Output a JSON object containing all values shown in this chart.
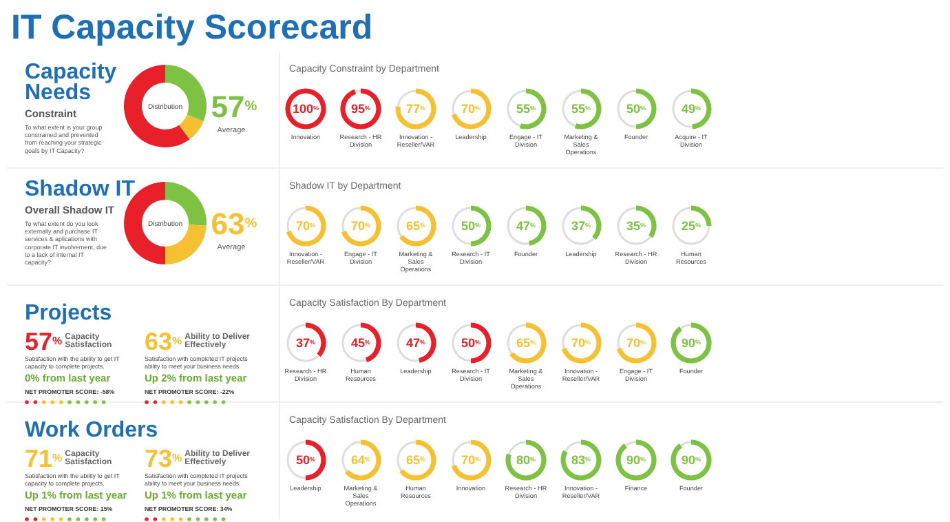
{
  "chart_data": [
    {
      "type": "other",
      "title": "IT Capacity Scorecard"
    },
    {
      "type": "donut",
      "title": "Capacity Needs",
      "subtitle": "Constraint",
      "categories": [
        null,
        null,
        null
      ],
      "values": [
        31,
        9,
        60
      ],
      "colors": [
        "#7dc242",
        "#f5c132",
        "#e8202a"
      ],
      "annotations": [
        "To what extent is your group constrained and prevented from reaching your strategic goals by IT Capacity?",
        "Distribution",
        "57$^{%}$",
        "Average"
      ]
    },
    {
      "type": "donut",
      "title": "Shadow IT",
      "subtitle": "Overall Shadow IT",
      "categories": [
        null,
        null,
        null
      ],
      "values": [
        26,
        24,
        50
      ],
      "colors": [
        "#7dc242",
        "#f5c132",
        "#e8202a"
      ],
      "annotations": [
        "To what extent do you look externally and purchase IT services & aplications with corporate IT involvement, due to a lack of internal IT capacity?",
        "Distribution",
        "63$^{%}$",
        "Average"
      ]
    },
    {
      "type": "other",
      "title": "Capacity Constraint by Department",
      "categories": [
        "Innovation",
        "Research - HR Division",
        "Innovation - Reseller/VAR",
        "Leadership",
        "Engage - IT Division",
        "Marketing & Sales Operations",
        "Founder",
        "Acquire - IT Division"
      ],
      "values": [
        100,
        95,
        77,
        70,
        55,
        55,
        50,
        49
      ],
      "value_labels": [
        "100$^{%}$",
        "95$^{%}$",
        "77$^{%}$",
        "70$^{%}$",
        "55$^{%}$",
        "55$^{%}$",
        "50$^{%}$",
        "49$^{%}$"
      ],
      "colors": [
        "#e8202a",
        "#e8202a",
        "#f5c132",
        "#f5c132",
        "#7dc242",
        "#7dc242",
        "#7dc242",
        "#7dc242"
      ]
    },
    {
      "type": "other",
      "title": "Shadow IT by Department",
      "categories": [
        "Innovation - Reseller/VAR",
        "Engage - IT Division",
        "Marketing & Sales Operations",
        "Research - IT Division",
        "Founder",
        "Leadership",
        "Research - HR Division",
        "Human Resources"
      ],
      "values": [
        70,
        70,
        65,
        50,
        47,
        37,
        35,
        25
      ],
      "value_labels": [
        "70$^{%}$",
        "70$^{%}$",
        "65$^{%}$",
        "50$^{%}$",
        "47$^{%}$",
        "37$^{%}$",
        "35$^{%}$",
        "25$^{%}$"
      ],
      "colors": [
        "#f5c132",
        "#f5c132",
        "#f5c132",
        "#7dc242",
        "#7dc242",
        "#7dc242",
        "#7dc242",
        "#7dc242"
      ]
    },
    {
      "type": "other",
      "title": "Projects",
      "colors": [
        "#e8202a",
        "#f5c132"
      ],
      "annotations": [
        "57$^{%}$",
        "Capacity Satisfaction",
        "Satisfaction with the ability to get IT capacity to complete projects.",
        "0% from last year",
        "NET PROMOTER SCORE: -58%",
        "63$^{%}$",
        "Ability to Deliver Effectively",
        "Satisfaction with completed IT projects ability to meet your business needs.",
        "Up 2% from last year",
        "NET PROMOTER SCORE: -22%"
      ]
    },
    {
      "type": "other",
      "title": "Capacity Satisfaction By Department",
      "categories": [
        "Research - HR Division",
        "Human Resources",
        "Leadership",
        "Research - IT Division",
        "Marketing & Sales Operations",
        "Innovation - Reseller/VAR",
        "Engage - IT Division",
        "Founder"
      ],
      "values": [
        37,
        45,
        47,
        50,
        65,
        70,
        70,
        90
      ],
      "value_labels": [
        "37$^{%}$",
        "45$^{%}$",
        "47$^{%}$",
        "50$^{%}$",
        "65$^{%}$",
        "70$^{%}$",
        "70$^{%}$",
        "90$^{%}$"
      ],
      "colors": [
        "#e8202a",
        "#e8202a",
        "#e8202a",
        "#e8202a",
        "#f5c132",
        "#f5c132",
        "#f5c132",
        "#7dc242"
      ]
    },
    {
      "type": "other",
      "title": "Work Orders",
      "colors": [
        "#f5c132",
        "#f5c132"
      ],
      "annotations": [
        "71$^{%}$",
        "Capacity Satisfaction",
        "Satisfaction with the ability to get IT capacity to complete projects.",
        "Up 1% from last year",
        "NET PROMOTER SCORE: 15%",
        "73$^{%}$",
        "Ability to Deliver Effectively",
        "Satisfaction with completed IT projects ability to meet your business needs.",
        "Up 1% from last year",
        "NET PROMOTER SCORE: 34%"
      ]
    },
    {
      "type": "other",
      "title": "Capacity Satisfaction By Department",
      "categories": [
        "Leadership",
        "Marketing & Sales Operations",
        "Human Resources",
        "Innovation",
        "Research - HR Division",
        "Innovation - Reseller/VAR",
        "Finance",
        "Founder"
      ],
      "values": [
        50,
        64,
        65,
        70,
        80,
        83,
        90,
        90
      ],
      "value_labels": [
        "50$^{%}$",
        "64$^{%}$",
        "65$^{%}$",
        "70$^{%}$",
        "80$^{%}$",
        "83$^{%}$",
        "90$^{%}$",
        "90$^{%}$"
      ],
      "colors": [
        "#e8202a",
        "#f5c132",
        "#f5c132",
        "#f5c132",
        "#7dc242",
        "#7dc242",
        "#7dc242",
        "#7dc242"
      ]
    }
  ]
}
